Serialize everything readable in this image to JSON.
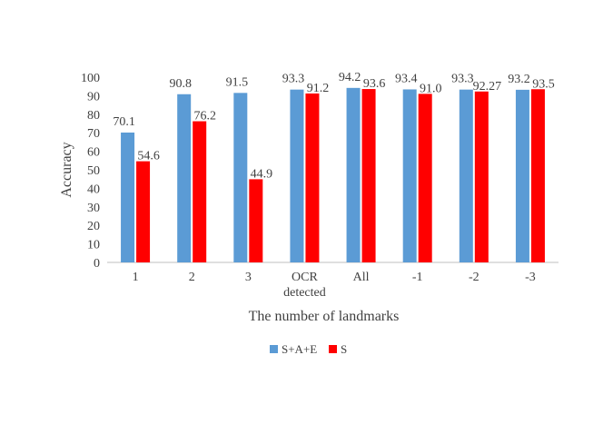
{
  "chart_data": {
    "type": "bar",
    "categories": [
      "1",
      "2",
      "3",
      "OCR\ndetected",
      "All",
      "-1",
      "-2",
      "-3"
    ],
    "series": [
      {
        "name": "S+A+E",
        "color": "#5b9bd5",
        "values": [
          70.1,
          90.8,
          91.5,
          93.3,
          94.2,
          93.4,
          93.3,
          93.2
        ],
        "labels": [
          "70.1",
          "90.8",
          "91.5",
          "93.3",
          "94.2",
          "93.4",
          "93.3",
          "93.2"
        ]
      },
      {
        "name": "S",
        "color": "#ff0000",
        "values": [
          54.6,
          76.2,
          44.9,
          91.2,
          93.6,
          91.0,
          92.27,
          93.5
        ],
        "labels": [
          "54.6",
          "76.2",
          "44.9",
          "91.2",
          "93.6",
          "91.0",
          "92.27",
          "93.5"
        ]
      }
    ],
    "xlabel": "The number of landmarks",
    "ylabel": "Accuracy",
    "ylim": [
      0,
      100
    ],
    "yticks": [
      0,
      10,
      20,
      30,
      40,
      50,
      60,
      70,
      80,
      90,
      100
    ],
    "grid": false,
    "legend_position": "bottom-center"
  }
}
